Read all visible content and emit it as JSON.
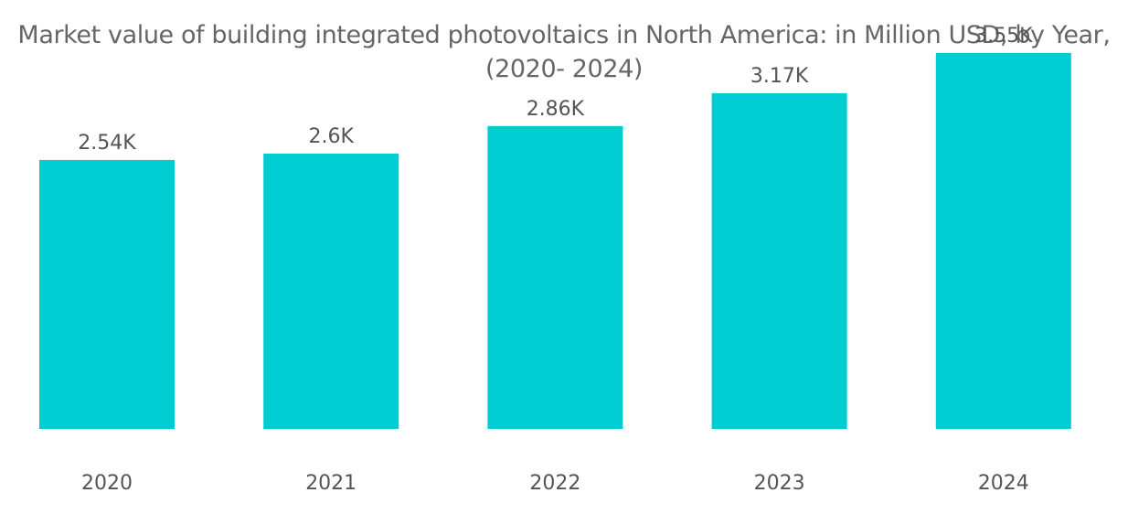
{
  "chart_data": {
    "type": "bar",
    "title_lines": [
      "Market value of building integrated photovoltaics in North America: in Million USD, by Year,",
      "(2020- 2024)"
    ],
    "categories": [
      "2020",
      "2021",
      "2022",
      "2023",
      "2024"
    ],
    "values": [
      2540,
      2600,
      2860,
      3170,
      3550
    ],
    "data_labels": [
      "2.54K",
      "2.6K",
      "2.86K",
      "3.17K",
      "3.55K"
    ],
    "xlabel": "",
    "ylabel": "",
    "ylim": [
      0,
      4050
    ],
    "grid": false,
    "legend": "none",
    "colors": {
      "bar": "#00CDD1",
      "text": "#555555",
      "title": "#666666"
    }
  }
}
